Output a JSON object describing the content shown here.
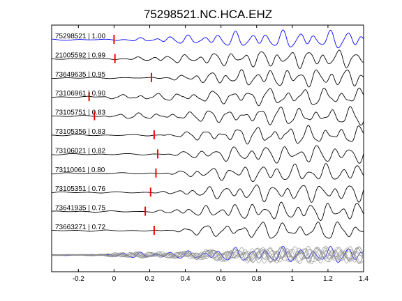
{
  "chart_data": {
    "type": "line",
    "title": "75298521.NC.HCA.EHZ",
    "xlabel": "",
    "ylabel": "",
    "xlim": [
      -0.35,
      1.4
    ],
    "xticks": [
      -0.2,
      0,
      0.2,
      0.4,
      0.6,
      0.8,
      1,
      1.2,
      1.4
    ],
    "xtick_labels": [
      "-0.2",
      "0",
      "0.2",
      "0.4",
      "0.6",
      "0.8",
      "1",
      "1.2",
      "1.4"
    ],
    "grid": false,
    "trace_color_reference": "#0000ff",
    "trace_color_default": "#000000",
    "pick_color": "#ff0000",
    "stack_color": "#888888",
    "traces": [
      {
        "label": "75298521 | 1.00",
        "event_id": "75298521",
        "cc": 1.0,
        "pick_time": 0.0,
        "reference": true
      },
      {
        "label": "21005592 | 0.99",
        "event_id": "21005592",
        "cc": 0.99,
        "pick_time": 0.005
      },
      {
        "label": "73649635 | 0.95",
        "event_id": "73649635",
        "cc": 0.95,
        "pick_time": 0.21
      },
      {
        "label": "73106961 | 0.90",
        "event_id": "73106961",
        "cc": 0.9,
        "pick_time": -0.14
      },
      {
        "label": "73105751 | 0.83",
        "event_id": "73105751",
        "cc": 0.83,
        "pick_time": -0.11
      },
      {
        "label": "73105356 | 0.83",
        "event_id": "73105356",
        "cc": 0.83,
        "pick_time": 0.225
      },
      {
        "label": "73106021 | 0.82",
        "event_id": "73106021",
        "cc": 0.82,
        "pick_time": 0.245
      },
      {
        "label": "73110061 | 0.80",
        "event_id": "73110061",
        "cc": 0.8,
        "pick_time": 0.235
      },
      {
        "label": "73105351 | 0.76",
        "event_id": "73105351",
        "cc": 0.76,
        "pick_time": 0.205
      },
      {
        "label": "73641935 | 0.75",
        "event_id": "73641935",
        "cc": 0.75,
        "pick_time": 0.175
      },
      {
        "label": "73663271 | 0.72",
        "event_id": "73663271",
        "cc": 0.72,
        "pick_time": 0.225
      }
    ]
  }
}
